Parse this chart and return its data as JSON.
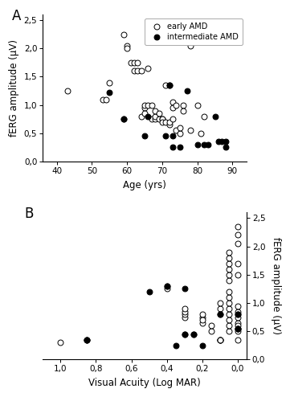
{
  "panel_A": {
    "early_AMD_x": [
      43,
      53,
      54,
      55,
      59,
      60,
      60,
      61,
      62,
      62,
      63,
      63,
      64,
      64,
      65,
      65,
      65,
      66,
      66,
      67,
      67,
      68,
      68,
      68,
      69,
      69,
      70,
      70,
      70,
      71,
      71,
      72,
      72,
      73,
      73,
      73,
      74,
      74,
      75,
      75,
      76,
      76,
      78,
      78,
      80,
      81,
      82
    ],
    "early_AMD_y": [
      1.25,
      1.1,
      1.1,
      1.4,
      2.25,
      2.05,
      2.0,
      1.75,
      1.75,
      1.6,
      1.6,
      1.75,
      1.6,
      0.8,
      0.95,
      1.0,
      0.85,
      1.0,
      1.65,
      1.0,
      0.75,
      0.75,
      0.8,
      0.9,
      0.75,
      0.85,
      0.75,
      0.75,
      0.7,
      1.35,
      0.7,
      0.65,
      0.7,
      1.05,
      0.95,
      0.75,
      1.0,
      0.55,
      0.5,
      0.6,
      1.0,
      0.9,
      2.05,
      0.55,
      1.0,
      0.5,
      0.8
    ],
    "inter_AMD_x": [
      55,
      59,
      59,
      65,
      66,
      71,
      72,
      72,
      73,
      73,
      75,
      77,
      80,
      82,
      83,
      85,
      86,
      87,
      88,
      88
    ],
    "inter_AMD_y": [
      1.22,
      0.75,
      0.76,
      0.45,
      0.8,
      0.45,
      1.35,
      1.35,
      0.45,
      0.25,
      0.25,
      1.25,
      0.3,
      0.3,
      0.3,
      0.8,
      0.35,
      0.35,
      0.35,
      0.25
    ],
    "xlabel": "Age (yrs)",
    "ylabel": "fERG amplitude (μV)",
    "xlim": [
      36,
      94
    ],
    "ylim": [
      0.0,
      2.6
    ],
    "yticks": [
      0.0,
      0.5,
      1.0,
      1.5,
      2.0,
      2.5
    ],
    "yticklabels": [
      "0,0",
      "0,5",
      "1,0",
      "1,5",
      "2,0",
      "2,5"
    ],
    "xticks": [
      40,
      50,
      60,
      70,
      80,
      90
    ],
    "panel_label": "A"
  },
  "panel_B": {
    "early_AMD_x": [
      1.0,
      0.1,
      0.1,
      0.1,
      0.1,
      0.2,
      0.2,
      0.2,
      0.2,
      0.3,
      0.3,
      0.3,
      0.3,
      0.4,
      0.4,
      0.1,
      0.1,
      0.05,
      0.05,
      0.05,
      0.05,
      0.05,
      0.05,
      0.05,
      0.05,
      0.05,
      0.05,
      0.05,
      0.05,
      0.05,
      0.05,
      0.0,
      0.0,
      0.0,
      0.0,
      0.0,
      0.0,
      0.0,
      0.0,
      0.0,
      0.0,
      0.0,
      0.0,
      0.15,
      0.15
    ],
    "early_AMD_y": [
      0.3,
      0.35,
      0.35,
      0.35,
      0.35,
      0.65,
      0.75,
      0.8,
      0.7,
      0.75,
      0.8,
      0.85,
      0.9,
      1.25,
      1.3,
      0.9,
      1.0,
      0.5,
      0.6,
      0.7,
      0.8,
      0.9,
      1.0,
      1.1,
      1.2,
      1.4,
      1.5,
      1.6,
      1.7,
      1.8,
      1.9,
      0.35,
      0.5,
      0.65,
      0.75,
      0.85,
      0.95,
      1.5,
      1.7,
      2.05,
      2.2,
      2.35,
      0.6,
      0.5,
      0.6
    ],
    "inter_AMD_x": [
      0.85,
      0.85,
      0.85,
      0.5,
      0.4,
      0.35,
      0.3,
      0.3,
      0.3,
      0.25,
      0.25,
      0.2,
      0.1,
      0.1,
      0.0,
      0.0,
      0.0,
      0.0,
      0.0
    ],
    "inter_AMD_y": [
      0.35,
      0.35,
      0.35,
      1.2,
      1.3,
      0.25,
      1.25,
      0.45,
      0.45,
      0.45,
      0.45,
      0.25,
      0.8,
      0.8,
      0.8,
      0.8,
      0.55,
      0.55,
      0.55
    ],
    "xlabel": "Visual Acuity (Log MAR)",
    "ylabel": "fERG amplitude (μV)",
    "xlim": [
      1.1,
      -0.05
    ],
    "ylim": [
      0.0,
      2.6
    ],
    "yticks": [
      0.0,
      0.5,
      1.0,
      1.5,
      2.0,
      2.5
    ],
    "yticklabels": [
      "0,0",
      "0,5",
      "1,0",
      "1,5",
      "2,0",
      "2,5"
    ],
    "xticks": [
      1.0,
      0.8,
      0.6,
      0.4,
      0.2,
      0.0
    ],
    "xticklabels": [
      "1,0",
      "0,8",
      "0,6",
      "0,4",
      "0,2",
      "0,0"
    ],
    "panel_label": "B"
  },
  "legend": {
    "early_label": "early AMD",
    "inter_label": "intermediate AMD"
  },
  "marker_size": 5,
  "open_color": "white",
  "closed_color": "black",
  "edge_color": "black",
  "bg_color": "white"
}
